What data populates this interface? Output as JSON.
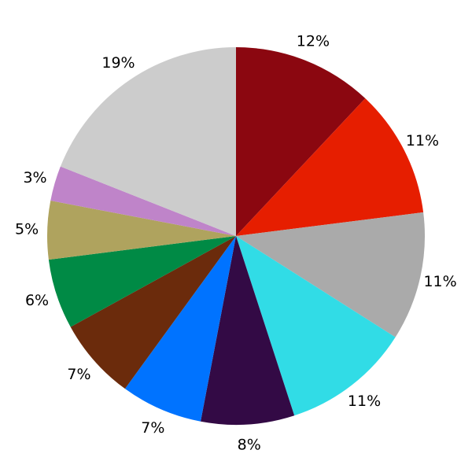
{
  "chart_data": {
    "type": "pie",
    "start": "top",
    "direction": "clockwise",
    "labels": [
      "12%",
      "11%",
      "11%",
      "11%",
      "8%",
      "7%",
      "7%",
      "6%",
      "5%",
      "3%",
      "19%"
    ],
    "values": [
      12,
      11,
      11,
      11,
      8,
      7,
      7,
      6,
      5,
      3,
      19
    ],
    "colors": [
      "#8B0710",
      "#E61E00",
      "#AAAAAA",
      "#31DCE6",
      "#330A45",
      "#0073FF",
      "#6B2B0C",
      "#008A45",
      "#AFA35E",
      "#BF84C9",
      "#CCCCCC"
    ]
  }
}
